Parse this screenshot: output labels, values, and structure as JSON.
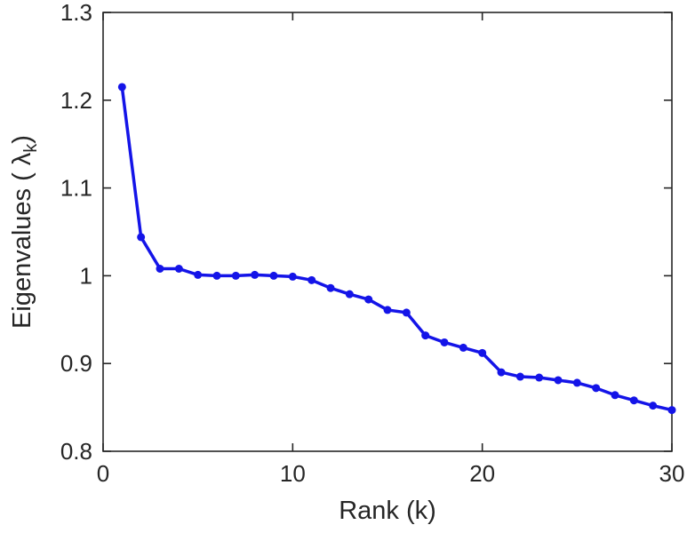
{
  "figure": {
    "background": "#ffffff"
  },
  "chart_data": {
    "type": "line",
    "title": "",
    "xlabel": "Rank (k)",
    "ylabel_prefix": "Eigenvalues ( λ",
    "ylabel_sub": "k",
    "ylabel_suffix": ")",
    "x": [
      1,
      2,
      3,
      4,
      5,
      6,
      7,
      8,
      9,
      10,
      11,
      12,
      13,
      14,
      15,
      16,
      17,
      18,
      19,
      20,
      21,
      22,
      23,
      24,
      25,
      26,
      27,
      28,
      29,
      30
    ],
    "y": [
      1.215,
      1.044,
      1.008,
      1.008,
      1.001,
      1.0,
      1.0,
      1.001,
      1.0,
      0.999,
      0.995,
      0.986,
      0.979,
      0.973,
      0.961,
      0.958,
      0.932,
      0.924,
      0.918,
      0.912,
      0.89,
      0.885,
      0.884,
      0.881,
      0.878,
      0.872,
      0.864,
      0.858,
      0.852,
      0.847
    ],
    "xlim": [
      0,
      30
    ],
    "ylim": [
      0.8,
      1.3
    ],
    "xticks": [
      0,
      10,
      20,
      30
    ],
    "xtick_labels": [
      "0",
      "10",
      "20",
      "30"
    ],
    "yticks": [
      0.8,
      0.9,
      1.0,
      1.1,
      1.2,
      1.3
    ],
    "ytick_labels": [
      "0.8",
      "0.9",
      "1",
      "1.1",
      "1.2",
      "1.3"
    ],
    "line_color": "#1414e8",
    "marker": "circle",
    "axis_color": "#262626",
    "tick_label_color": "#262626",
    "grid": false,
    "legend_position": "none"
  }
}
